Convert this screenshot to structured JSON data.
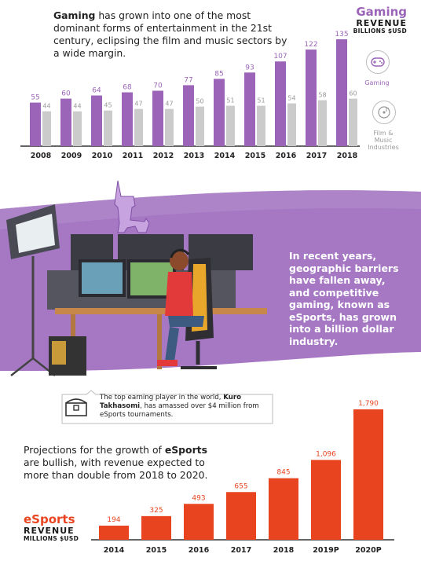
{
  "intro": {
    "bold": "Gaming",
    "rest": " has grown into one of the most dominant forms of entertainment in the 21st century, eclipsing the film and music sectors by a wide margin."
  },
  "gaming_title": {
    "word": "Gaming",
    "revenue": "REVENUE",
    "unit": "BILLIONS $USD"
  },
  "legend": {
    "gaming": "Gaming",
    "film": "Film & Music Industries"
  },
  "esports_text": "In recent years, geographic barriers have fallen away, and competitive gaming, known as eSports, has grown into a billion dollar industry.",
  "callout": {
    "pre": "The top earning player in the world, ",
    "bold": "Kuro Takhasomi",
    "post": ", has amassed over $4 million from eSports tournaments."
  },
  "projection": {
    "pre": "Projections for the growth of ",
    "bold": "eSports",
    "post": " are bullish, with revenue expected to more than double from 2018 to 2020."
  },
  "esports_title": {
    "word": "eSports",
    "revenue": "REVENUE",
    "unit": "MILLIONS $USD"
  },
  "colors": {
    "gaming": "#9b64b8",
    "film": "#cbcbcb",
    "esports": "#e8441f",
    "band": "#a678c4"
  },
  "chart_data": [
    {
      "type": "bar",
      "title": "Gaming REVENUE",
      "ylabel": "BILLIONS $USD",
      "categories": [
        "2008",
        "2009",
        "2010",
        "2011",
        "2012",
        "2013",
        "2014",
        "2015",
        "2016",
        "2017",
        "2018"
      ],
      "series": [
        {
          "name": "Gaming",
          "values": [
            55,
            60,
            64,
            68,
            70,
            77,
            85,
            93,
            107,
            122,
            135
          ]
        },
        {
          "name": "Film & Music Industries",
          "values": [
            44,
            44,
            45,
            47,
            47,
            50,
            51,
            51,
            54,
            58,
            60
          ]
        }
      ],
      "ylim": [
        0,
        135
      ],
      "grid": false,
      "legend": "right"
    },
    {
      "type": "bar",
      "title": "eSports REVENUE",
      "ylabel": "MILLIONS $USD",
      "categories": [
        "2014",
        "2015",
        "2016",
        "2017",
        "2018",
        "2019P",
        "2020P"
      ],
      "values": [
        194,
        325,
        493,
        655,
        845,
        1096,
        1790
      ],
      "value_labels": [
        "194",
        "325",
        "493",
        "655",
        "845",
        "1,096",
        "1,790"
      ],
      "ylim": [
        0,
        1790
      ],
      "grid": false
    }
  ]
}
